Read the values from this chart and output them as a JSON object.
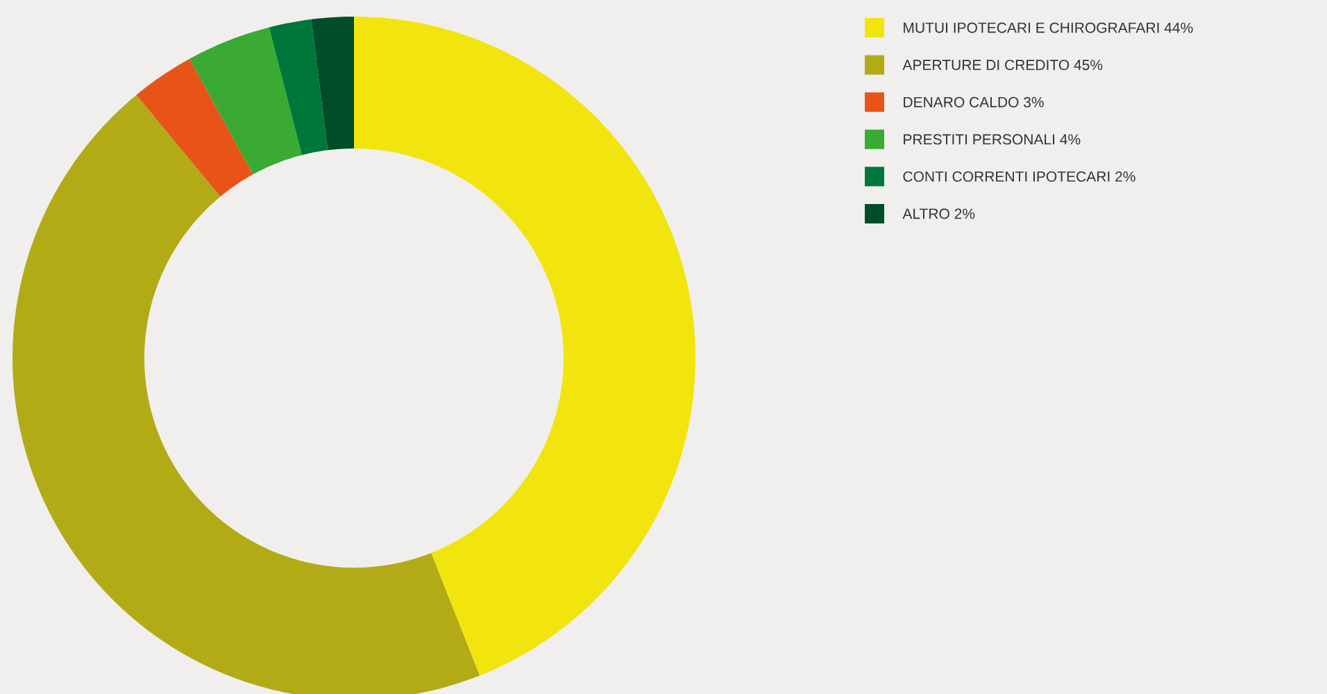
{
  "chart_data": {
    "type": "donut",
    "categories": [
      "MUTUI IPOTECARI E CHIROGRAFARI 44%",
      "APERTURE DI CREDITO 45%",
      "DENARO CALDO 3%",
      "PRESTITI PERSONALI 4%",
      "CONTI CORRENTI IPOTECARI 2%",
      "ALTRO 2%"
    ],
    "values": [
      44,
      45,
      3,
      4,
      2,
      2
    ],
    "colors": [
      "#f2e40d",
      "#b2ab16",
      "#e85418",
      "#3aaa35",
      "#00773a",
      "#004d2a"
    ],
    "legend": "top right"
  }
}
